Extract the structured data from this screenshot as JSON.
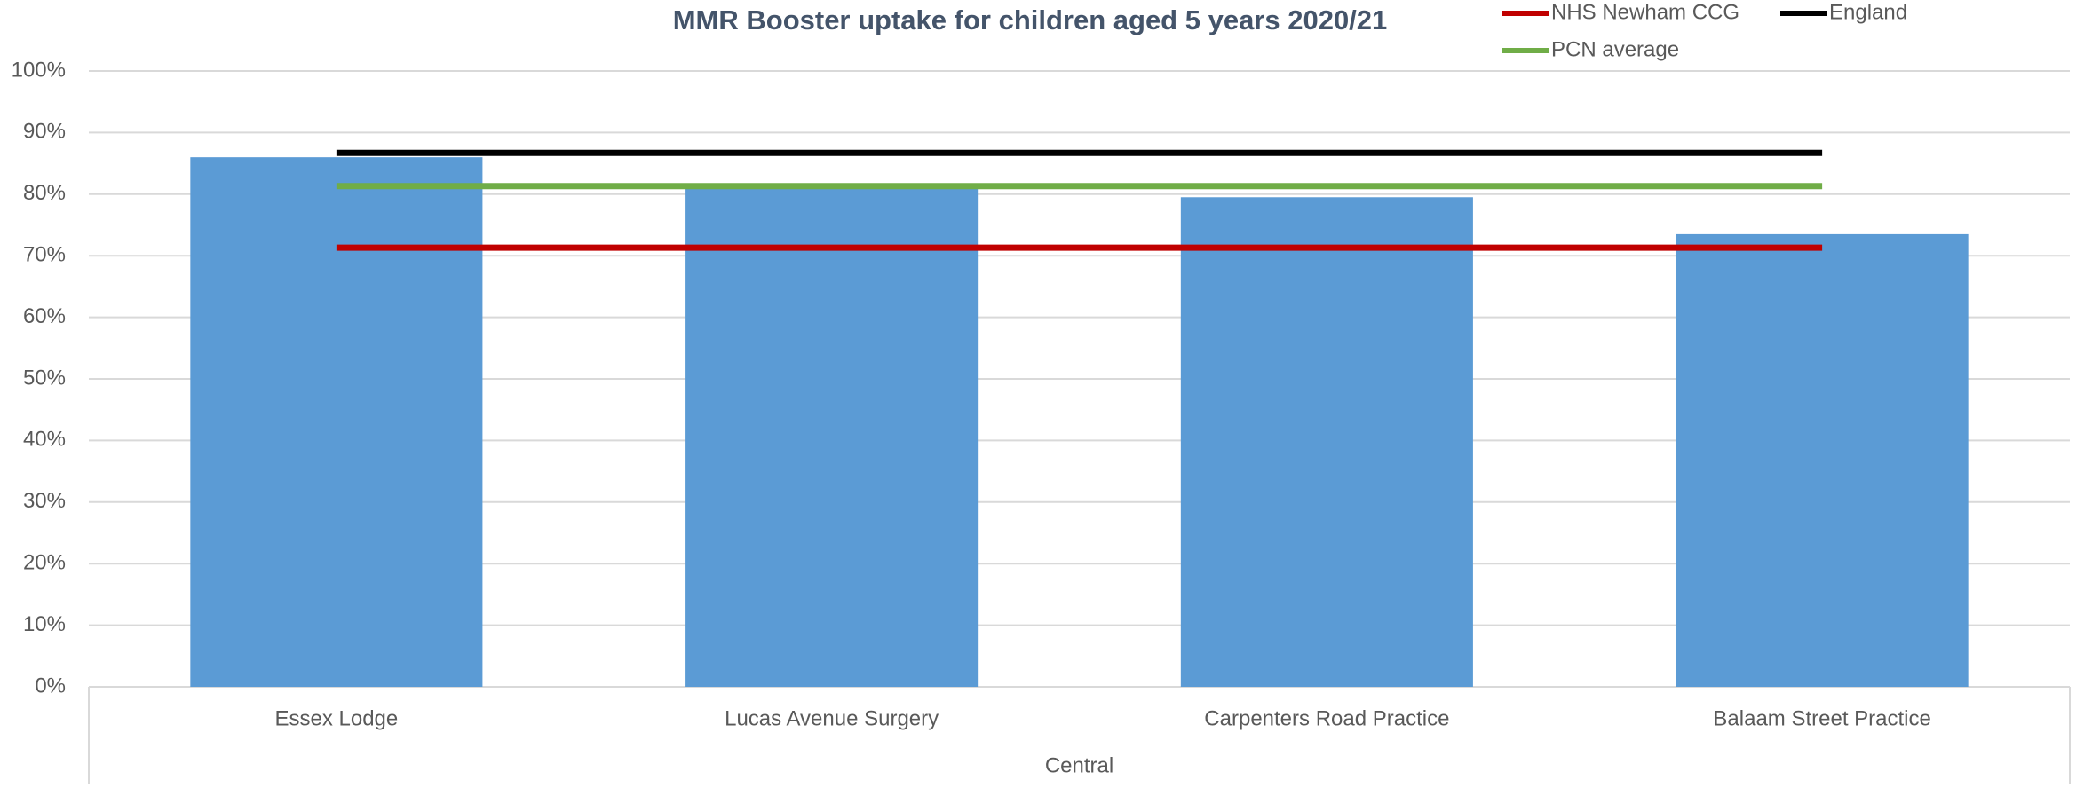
{
  "chart_data": {
    "type": "bar",
    "title": "MMR Booster uptake for children aged 5 years 2020/21",
    "categories": [
      "Essex Lodge",
      "Lucas Avenue Surgery",
      "Carpenters Road Practice",
      "Balaam Street Practice"
    ],
    "group_label": "Central",
    "values": [
      86,
      81,
      79.5,
      73.5
    ],
    "color": "#5b9bd5",
    "reference_lines": [
      {
        "name": "NHS Newham CCG",
        "color": "#c00000",
        "value": 71.3
      },
      {
        "name": "England",
        "color": "#000000",
        "value": 86.7
      },
      {
        "name": "PCN average",
        "color": "#70ad47",
        "value": 81.3
      }
    ],
    "ylim": [
      0,
      100
    ],
    "yticks": [
      {
        "value": 0,
        "label": "0%"
      },
      {
        "value": 10,
        "label": "10%"
      },
      {
        "value": 20,
        "label": "20%"
      },
      {
        "value": 30,
        "label": "30%"
      },
      {
        "value": 40,
        "label": "40%"
      },
      {
        "value": 50,
        "label": "50%"
      },
      {
        "value": 60,
        "label": "60%"
      },
      {
        "value": 70,
        "label": "70%"
      },
      {
        "value": 80,
        "label": "80%"
      },
      {
        "value": 90,
        "label": "90%"
      },
      {
        "value": 100,
        "label": "100%"
      }
    ],
    "grid": true
  }
}
